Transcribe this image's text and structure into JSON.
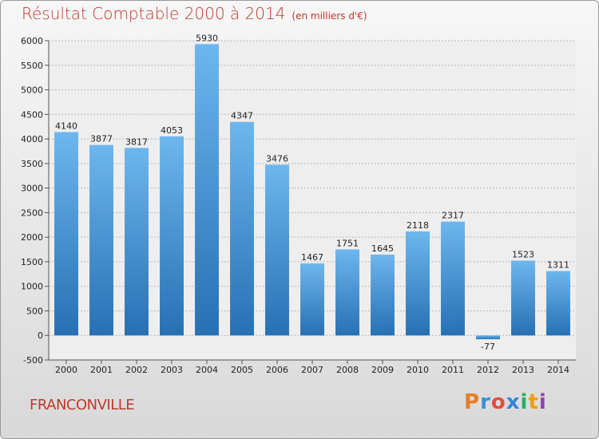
{
  "title": "Résultat Comptable 2000 à 2014",
  "subtitle": "(en milliers d'€)",
  "city": "FRANCONVILLE",
  "logo": {
    "letters": [
      "P",
      "r",
      "o",
      "x",
      "i",
      "t",
      "i"
    ],
    "colors": [
      "#e67e22",
      "#3a8fd9",
      "#e74c3c",
      "#2e86de",
      "#27ae60",
      "#f39c12",
      "#8e44ad"
    ]
  },
  "colors": {
    "bar": "#3f8fd4",
    "bar_light": "#6db6ee",
    "bar_dark": "#2770b3",
    "grid": "#b8b8b8",
    "text_red": "#c0392b"
  },
  "chart_data": {
    "type": "bar",
    "title": "Résultat Comptable 2000 à 2014",
    "subtitle": "(en milliers d'€)",
    "categories": [
      "2000",
      "2001",
      "2002",
      "2003",
      "2004",
      "2005",
      "2006",
      "2007",
      "2008",
      "2009",
      "2010",
      "2011",
      "2012",
      "2013",
      "2014"
    ],
    "values": [
      4140,
      3877,
      3817,
      4053,
      5930,
      4347,
      3476,
      1467,
      1751,
      1645,
      2118,
      2317,
      -77,
      1523,
      1311
    ],
    "data_labels": [
      "4140",
      "3877",
      "3817",
      "4053",
      "5930",
      "4347",
      "3476",
      "1467",
      "1751",
      "1645",
      "2118",
      "2317",
      "-77",
      "1523",
      "1311"
    ],
    "ylim": [
      -500,
      6000
    ],
    "yticks": [
      -500,
      0,
      500,
      1000,
      1500,
      2000,
      2500,
      3000,
      3500,
      4000,
      4500,
      5000,
      5500,
      6000
    ],
    "ytick_labels": [
      "-500",
      "0",
      "500",
      "1000",
      "1500",
      "2000",
      "2500",
      "3000",
      "3500",
      "4000",
      "4500",
      "5000",
      "5500",
      "6000"
    ],
    "grid": true,
    "xlabel": "",
    "ylabel": ""
  }
}
